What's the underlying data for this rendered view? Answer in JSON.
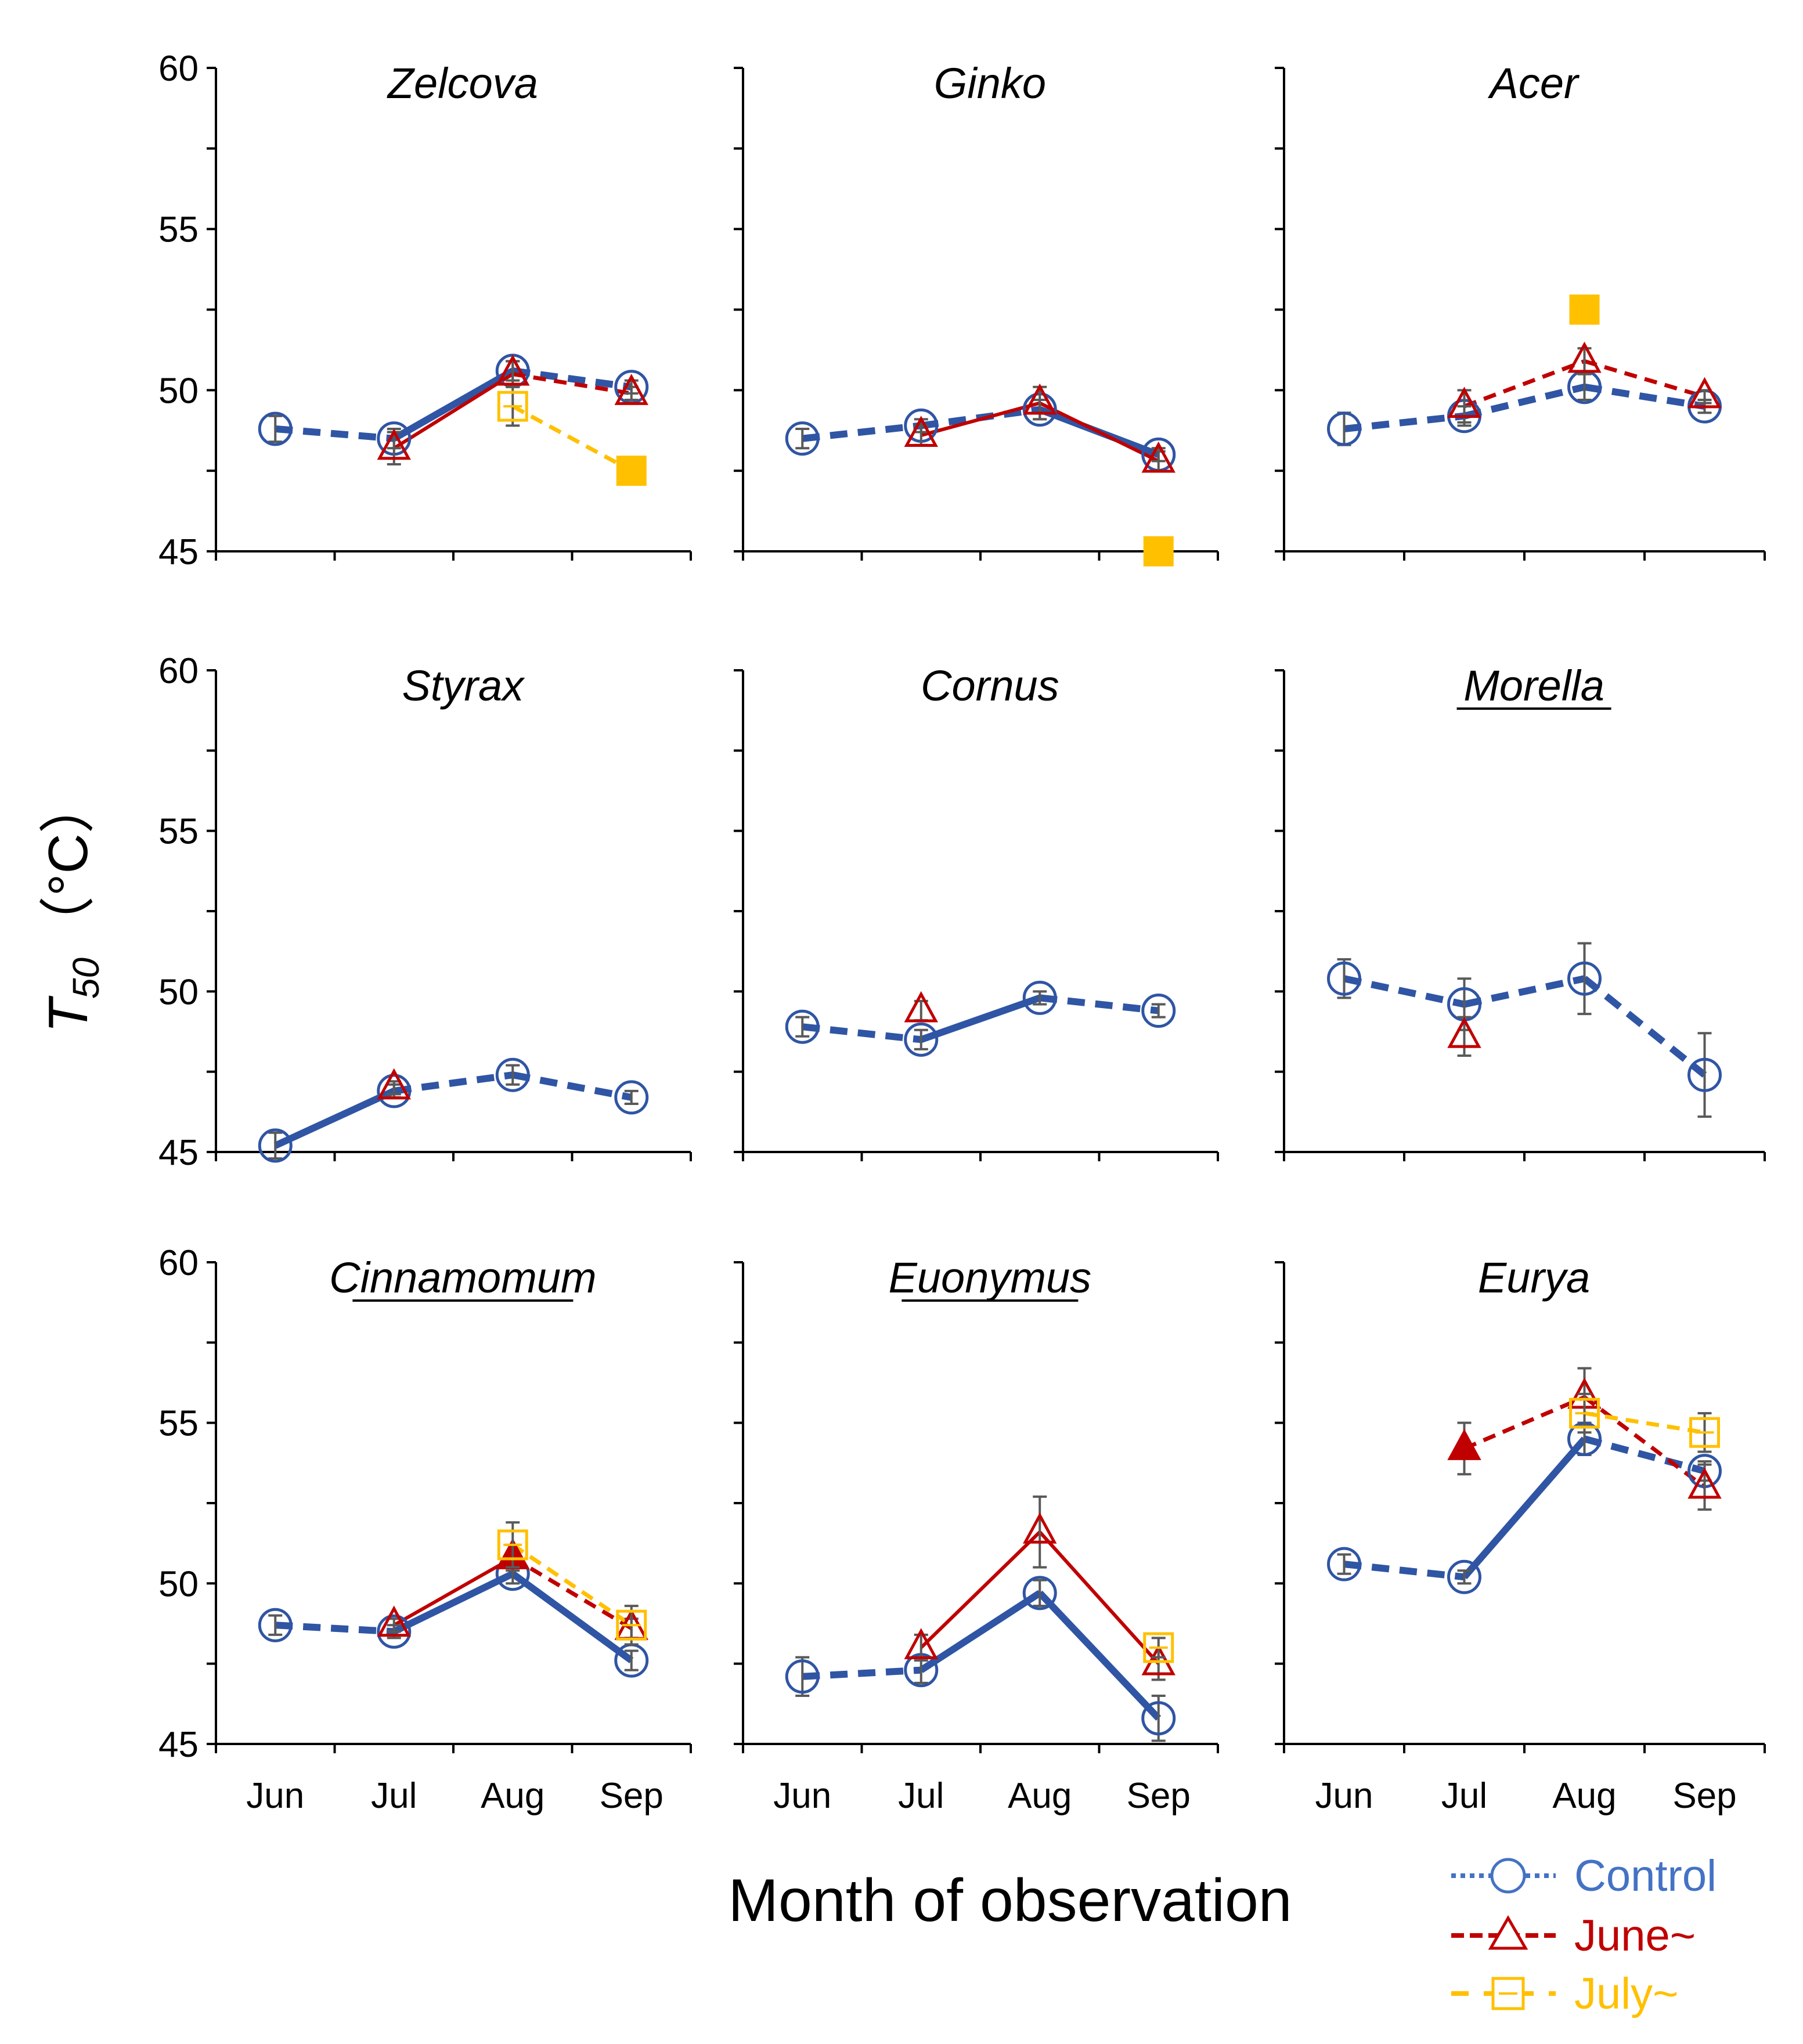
{
  "figure": {
    "ylabel_main": "T",
    "ylabel_sub": "50",
    "ylabel_unit": "（°C）",
    "xlabel": "Month of observation"
  },
  "legend": [
    {
      "key": "control",
      "label": "Control",
      "color": "#4472c4"
    },
    {
      "key": "june",
      "label": "June~",
      "color": "#c00000"
    },
    {
      "key": "july",
      "label": "July~",
      "color": "#ffc000"
    }
  ],
  "colors": {
    "control": "#2f55a4",
    "june": "#c00000",
    "july": "#ffc000",
    "errbar": "#595959",
    "axis": "#000000"
  },
  "chart_data": [
    {
      "type": "line",
      "title": "Zelcova",
      "title_underlined": false,
      "categories": [
        "Jun",
        "Jul",
        "Aug",
        "Sep"
      ],
      "ylim": [
        45,
        60
      ],
      "yticks": [
        45,
        50,
        55,
        60
      ],
      "series": [
        {
          "name": "Control",
          "style": "control",
          "values": [
            48.8,
            48.5,
            50.6,
            50.1
          ],
          "err": [
            0.4,
            0.3,
            0.3,
            0.2
          ],
          "segments": [
            "dashed",
            "solid",
            "dashed"
          ]
        },
        {
          "name": "June~",
          "style": "june",
          "values": [
            null,
            48.2,
            50.5,
            49.9
          ],
          "err": [
            null,
            0.5,
            0.4,
            0.2
          ],
          "segments": [
            null,
            "solid",
            "dashed"
          ]
        },
        {
          "name": "July~",
          "style": "july",
          "values": [
            null,
            null,
            49.5,
            47.5
          ],
          "err": [
            null,
            null,
            0.6,
            0
          ],
          "segments": [
            null,
            null,
            "dashed"
          ],
          "filled": [
            false,
            false,
            false,
            true
          ]
        }
      ]
    },
    {
      "type": "line",
      "title": "Ginko",
      "title_underlined": false,
      "categories": [
        "Jun",
        "Jul",
        "Aug",
        "Sep"
      ],
      "ylim": [
        45,
        60
      ],
      "yticks": [
        45,
        50,
        55,
        60
      ],
      "series": [
        {
          "name": "Control",
          "style": "control",
          "values": [
            48.5,
            48.9,
            49.4,
            48.0
          ],
          "err": [
            0.3,
            0.2,
            0.3,
            0.2
          ],
          "segments": [
            "dashed",
            "dashed",
            "solid"
          ]
        },
        {
          "name": "June~",
          "style": "june",
          "values": [
            null,
            48.6,
            49.6,
            47.8
          ],
          "err": [
            null,
            0.3,
            0.5,
            0.3
          ],
          "segments": [
            null,
            "solid",
            "solid"
          ]
        },
        {
          "name": "July~",
          "style": "july",
          "values": [
            null,
            null,
            null,
            45.0
          ],
          "err": [
            null,
            null,
            null,
            0
          ],
          "segments": [
            null,
            null,
            null
          ],
          "filled": [
            false,
            false,
            false,
            true
          ]
        }
      ]
    },
    {
      "type": "line",
      "title": "Acer",
      "title_underlined": false,
      "categories": [
        "Jun",
        "Jul",
        "Aug",
        "Sep"
      ],
      "ylim": [
        45,
        60
      ],
      "yticks": [
        45,
        50,
        55,
        60
      ],
      "series": [
        {
          "name": "Control",
          "style": "control",
          "values": [
            48.8,
            49.2,
            50.1,
            49.5
          ],
          "err": [
            0.5,
            0.3,
            0.4,
            0.2
          ],
          "segments": [
            "dashed",
            "dashed",
            "dashed"
          ]
        },
        {
          "name": "June~",
          "style": "june",
          "values": [
            null,
            49.5,
            50.9,
            49.8
          ],
          "err": [
            null,
            0.5,
            0.4,
            0.2
          ],
          "segments": [
            null,
            "dashed",
            "dashed"
          ]
        },
        {
          "name": "July~",
          "style": "july",
          "values": [
            null,
            null,
            52.5,
            null
          ],
          "err": [
            null,
            null,
            0,
            null
          ],
          "segments": [
            null,
            null,
            null
          ],
          "filled": [
            false,
            false,
            true,
            false
          ]
        }
      ]
    },
    {
      "type": "line",
      "title": "Styrax",
      "title_underlined": false,
      "categories": [
        "Jun",
        "Jul",
        "Aug",
        "Sep"
      ],
      "ylim": [
        45,
        60
      ],
      "yticks": [
        45,
        50,
        55,
        60
      ],
      "series": [
        {
          "name": "Control",
          "style": "control",
          "values": [
            45.2,
            46.9,
            47.4,
            46.7
          ],
          "err": [
            0.4,
            0.2,
            0.3,
            0.2
          ],
          "segments": [
            "solid",
            "dashed",
            "dashed"
          ]
        },
        {
          "name": "June~",
          "style": "june",
          "values": [
            null,
            47.0,
            null,
            null
          ],
          "err": [
            null,
            0.2,
            null,
            null
          ],
          "segments": [
            null,
            null,
            null
          ]
        }
      ]
    },
    {
      "type": "line",
      "title": "Cornus",
      "title_underlined": false,
      "categories": [
        "Jun",
        "Jul",
        "Aug",
        "Sep"
      ],
      "ylim": [
        45,
        60
      ],
      "yticks": [
        45,
        50,
        55,
        60
      ],
      "series": [
        {
          "name": "Control",
          "style": "control",
          "values": [
            48.9,
            48.5,
            49.8,
            49.4
          ],
          "err": [
            0.3,
            0.3,
            0.2,
            0.2
          ],
          "segments": [
            "dashed",
            "solid",
            "dashed"
          ]
        },
        {
          "name": "June~",
          "style": "june",
          "values": [
            null,
            49.4,
            null,
            null
          ],
          "err": [
            null,
            0.3,
            null,
            null
          ],
          "segments": [
            null,
            null,
            null
          ]
        }
      ]
    },
    {
      "type": "line",
      "title": "Morella",
      "title_underlined": true,
      "categories": [
        "Jun",
        "Jul",
        "Aug",
        "Sep"
      ],
      "ylim": [
        45,
        60
      ],
      "yticks": [
        45,
        50,
        55,
        60
      ],
      "series": [
        {
          "name": "Control",
          "style": "control",
          "values": [
            50.4,
            49.6,
            50.4,
            47.4
          ],
          "err": [
            0.6,
            0.8,
            1.1,
            1.3
          ],
          "segments": [
            "dashed",
            "dashed",
            "dashed"
          ]
        },
        {
          "name": "June~",
          "style": "june",
          "values": [
            null,
            48.6,
            null,
            null
          ],
          "err": [
            null,
            0.6,
            null,
            null
          ],
          "segments": [
            null,
            null,
            null
          ]
        }
      ]
    },
    {
      "type": "line",
      "title": "Cinnamomum",
      "title_underlined": true,
      "categories": [
        "Jun",
        "Jul",
        "Aug",
        "Sep"
      ],
      "ylim": [
        45,
        60
      ],
      "yticks": [
        45,
        50,
        55,
        60
      ],
      "series": [
        {
          "name": "Control",
          "style": "control",
          "values": [
            48.7,
            48.5,
            50.3,
            47.6
          ],
          "err": [
            0.3,
            0.2,
            0.3,
            0.3
          ],
          "segments": [
            "dashed",
            "solid",
            "solid"
          ]
        },
        {
          "name": "June~",
          "style": "june",
          "values": [
            null,
            48.7,
            50.8,
            48.6
          ],
          "err": [
            null,
            0.2,
            0.4,
            0.3
          ],
          "segments": [
            null,
            "solid",
            "dashed"
          ],
          "filled": [
            false,
            false,
            true,
            false
          ]
        },
        {
          "name": "July~",
          "style": "july",
          "values": [
            null,
            null,
            51.2,
            48.7
          ],
          "err": [
            null,
            null,
            0.7,
            0.6
          ],
          "segments": [
            null,
            null,
            "dashed"
          ],
          "filled": [
            false,
            false,
            false,
            false
          ]
        }
      ]
    },
    {
      "type": "line",
      "title": "Euonymus",
      "title_underlined": true,
      "categories": [
        "Jun",
        "Jul",
        "Aug",
        "Sep"
      ],
      "ylim": [
        45,
        60
      ],
      "yticks": [
        45,
        50,
        55,
        60
      ],
      "series": [
        {
          "name": "Control",
          "style": "control",
          "values": [
            47.1,
            47.3,
            49.7,
            45.8
          ],
          "err": [
            0.6,
            0.4,
            0.4,
            0.7
          ],
          "segments": [
            "dashed",
            "solid",
            "solid"
          ]
        },
        {
          "name": "June~",
          "style": "june",
          "values": [
            null,
            48.0,
            51.6,
            47.5
          ],
          "err": [
            null,
            0.4,
            1.1,
            0.5
          ],
          "segments": [
            null,
            "solid",
            "solid"
          ]
        },
        {
          "name": "July~",
          "style": "july",
          "values": [
            null,
            null,
            null,
            48.0
          ],
          "err": [
            null,
            null,
            null,
            0.3
          ],
          "segments": [
            null,
            null,
            null
          ],
          "filled": [
            false,
            false,
            false,
            false
          ]
        }
      ]
    },
    {
      "type": "line",
      "title": "Eurya",
      "title_underlined": false,
      "categories": [
        "Jun",
        "Jul",
        "Aug",
        "Sep"
      ],
      "ylim": [
        45,
        60
      ],
      "yticks": [
        45,
        50,
        55,
        60
      ],
      "series": [
        {
          "name": "Control",
          "style": "control",
          "values": [
            50.6,
            50.2,
            54.5,
            53.5
          ],
          "err": [
            0.3,
            0.2,
            0.5,
            0.3
          ],
          "segments": [
            "dashed",
            "solid",
            "dashed"
          ]
        },
        {
          "name": "June~",
          "style": "june",
          "values": [
            null,
            54.2,
            55.8,
            53.0
          ],
          "err": [
            null,
            0.8,
            0.9,
            0.7
          ],
          "segments": [
            null,
            "dashed",
            "dashed"
          ],
          "filled": [
            false,
            true,
            false,
            false
          ]
        },
        {
          "name": "July~",
          "style": "july",
          "values": [
            null,
            null,
            55.3,
            54.7
          ],
          "err": [
            null,
            null,
            0.6,
            0.6
          ],
          "segments": [
            null,
            null,
            "dashed"
          ],
          "filled": [
            false,
            false,
            false,
            false
          ]
        }
      ]
    }
  ]
}
